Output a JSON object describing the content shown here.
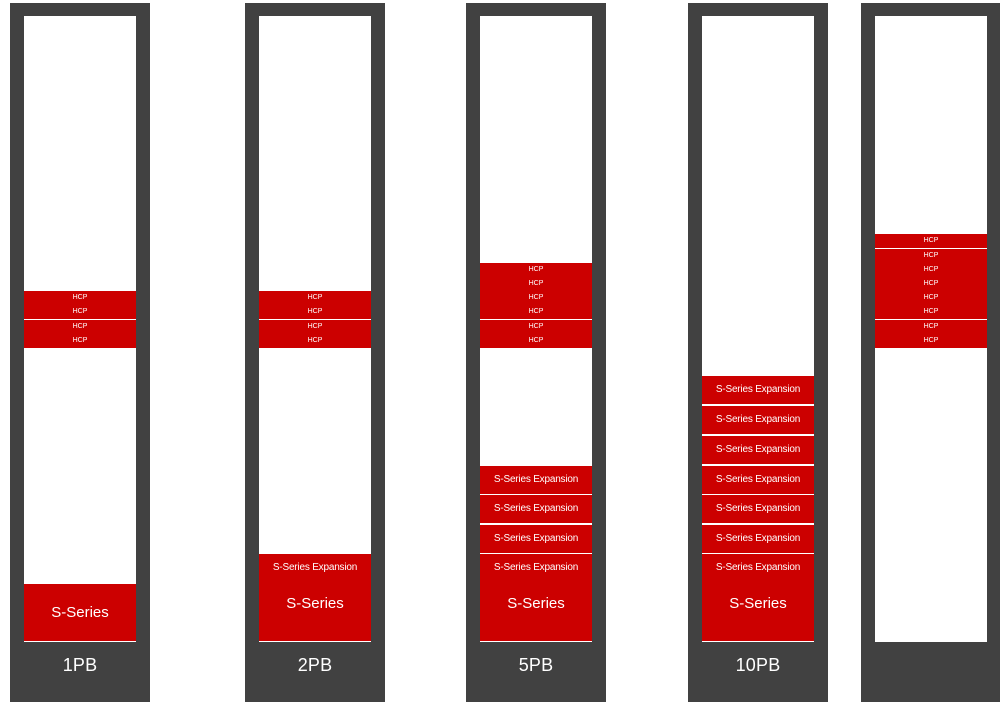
{
  "colors": {
    "rack_frame": "#414141",
    "rack_interior": "#ffffff",
    "unit_fill": "#cc0000",
    "unit_text": "#ffffff"
  },
  "racks": [
    {
      "label": "1PB",
      "hcp_group_1": [
        "HCP",
        "HCP"
      ],
      "hcp_group_2": [
        "HCP",
        "HCP"
      ],
      "base_expansion_label": "",
      "base_label": "S-Series"
    },
    {
      "label": "2PB",
      "hcp_group_1": [
        "HCP",
        "HCP"
      ],
      "hcp_group_2": [
        "HCP",
        "HCP"
      ],
      "base_expansion_label": "S-Series Expansion",
      "base_label": "S-Series"
    },
    {
      "label": "5PB",
      "hcp_group_1": [
        "HCP",
        "HCP",
        "HCP",
        "HCP"
      ],
      "hcp_group_2": [
        "HCP",
        "HCP"
      ],
      "expansions": [
        "S-Series Expansion",
        "S-Series Expansion",
        "S-Series Expansion"
      ],
      "base_expansion_label": "S-Series Expansion",
      "base_label": "S-Series"
    },
    {
      "label": "10PB",
      "expansions": [
        "S-Series Expansion",
        "S-Series Expansion",
        "S-Series Expansion",
        "S-Series Expansion",
        "S-Series Expansion",
        "S-Series Expansion"
      ],
      "base_expansion_label": "S-Series Expansion",
      "base_label": "S-Series"
    },
    {
      "label": "",
      "hcp_group_1": [
        "HCP"
      ],
      "hcp_group_2": [
        "HCP",
        "HCP",
        "HCP",
        "HCP",
        "HCP"
      ],
      "hcp_group_3": [
        "HCP",
        "HCP"
      ]
    }
  ]
}
